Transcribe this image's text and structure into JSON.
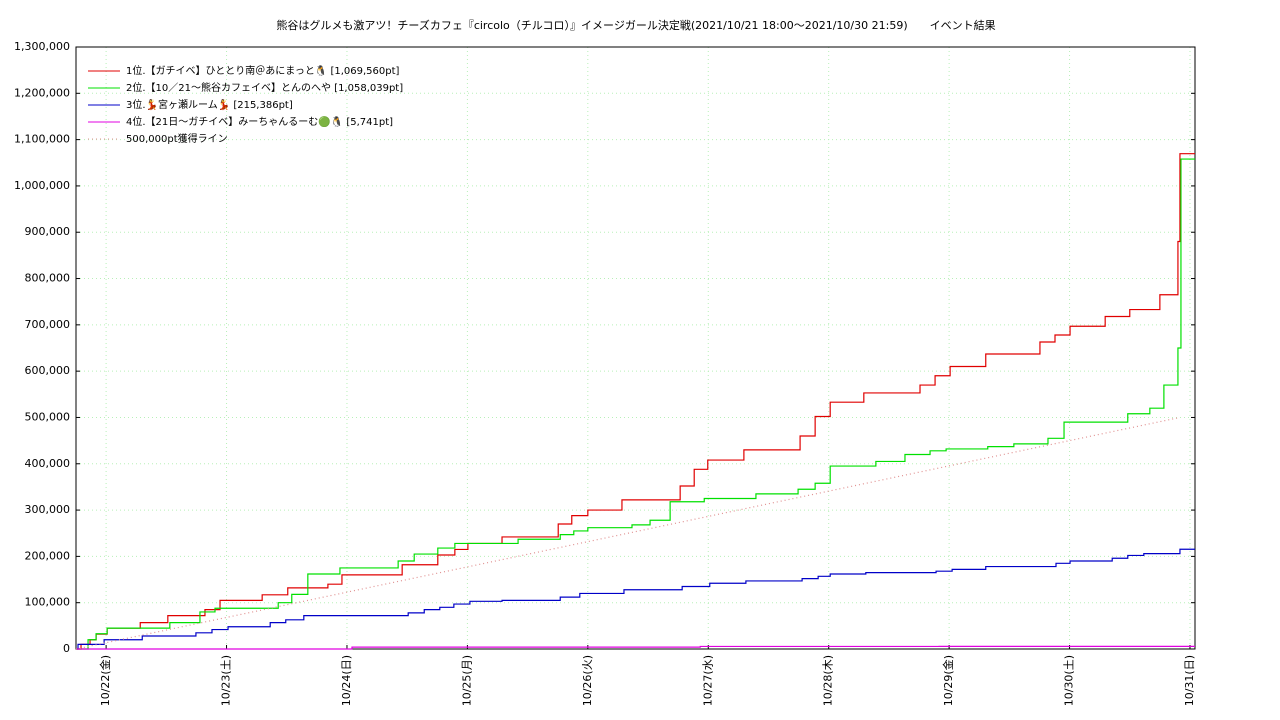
{
  "chart_data": {
    "type": "line",
    "step": true,
    "title": "熊谷はグルメも激アツ！チーズカフェ『circolo（チルコロ）』イメージガール決定戦(2021/10/21 18:00～2021/10/30 21:59)　　イベント結果",
    "xlim": [
      18,
      241
    ],
    "ylim": [
      0,
      1300000
    ],
    "grid": true,
    "legend": "upper-left",
    "xticks": [
      {
        "value": 24,
        "label": "10/22(金)"
      },
      {
        "value": 48,
        "label": "10/23(土)"
      },
      {
        "value": 72,
        "label": "10/24(日)"
      },
      {
        "value": 96,
        "label": "10/25(月)"
      },
      {
        "value": 120,
        "label": "10/26(火)"
      },
      {
        "value": 144,
        "label": "10/27(水)"
      },
      {
        "value": 168,
        "label": "10/28(木)"
      },
      {
        "value": 192,
        "label": "10/29(金)"
      },
      {
        "value": 216,
        "label": "10/30(土)"
      },
      {
        "value": 240,
        "label": "10/31(日)"
      }
    ],
    "yticks": [
      0,
      {
        "value": 100000,
        "label": "100,000"
      },
      {
        "value": 200000,
        "label": "200,000"
      },
      {
        "value": 300000,
        "label": "300,000"
      },
      {
        "value": 400000,
        "label": "400,000"
      },
      {
        "value": 500000,
        "label": "500,000"
      },
      {
        "value": 600000,
        "label": "600,000"
      },
      {
        "value": 700000,
        "label": "700,000"
      },
      {
        "value": 800000,
        "label": "800,000"
      },
      {
        "value": 900000,
        "label": "900,000"
      },
      {
        "value": 1000000,
        "label": "1,000,000"
      },
      {
        "value": 1100000,
        "label": "1,100,000"
      },
      {
        "value": 1200000,
        "label": "1,200,000"
      },
      {
        "value": 1300000,
        "label": "1,300,000"
      }
    ],
    "series": [
      {
        "name": "1位.【ガチイベ】ひととり南＠あにまっと🐧 [1,069,560pt]",
        "color": "#e00000",
        "x": [
          18,
          19,
          20.8,
          22,
          24.2,
          30.8,
          36.3,
          43.7,
          46.7,
          55.1,
          60.2,
          68.2,
          71,
          83,
          90.1,
          93.5,
          96.1,
          102.9,
          114.1,
          116.8,
          120,
          126.8,
          138.4,
          141.2,
          143.9,
          151.1,
          162.3,
          165.3,
          168.3,
          175,
          186.2,
          189.2,
          192.2,
          199.3,
          210.1,
          213.1,
          216.1,
          223.1,
          228,
          234,
          237.6,
          238
        ],
        "values": [
          0,
          10000,
          20000,
          32000,
          45000,
          57000,
          72000,
          85000,
          105000,
          117000,
          132000,
          140000,
          160000,
          182000,
          203000,
          215000,
          228000,
          242000,
          270000,
          288000,
          300000,
          322000,
          352000,
          388000,
          408000,
          430000,
          460000,
          502000,
          533000,
          553000,
          570000,
          590000,
          610000,
          637000,
          663000,
          678000,
          697000,
          718000,
          733000,
          765000,
          880000,
          1069560
        ]
      },
      {
        "name": "2位.【10／21〜熊谷カフェイベ】とんのへや [1,058,039pt]",
        "color": "#00e000",
        "x": [
          18,
          20.4,
          22,
          24.2,
          36.7,
          42.7,
          45.7,
          58.3,
          61,
          64.2,
          70.6,
          82.2,
          85.4,
          90.1,
          93.5,
          106.1,
          114.5,
          117.2,
          120,
          128.8,
          132.4,
          136.4,
          143.2,
          153.5,
          161.9,
          165.3,
          168.3,
          177.4,
          183.2,
          188.2,
          191.4,
          199.7,
          204.9,
          211.7,
          214.9,
          227.6,
          232,
          234.8,
          237.6,
          238.2
        ],
        "values": [
          0,
          20000,
          33000,
          45000,
          57000,
          80000,
          88000,
          100000,
          118000,
          162000,
          175000,
          190000,
          205000,
          218000,
          228000,
          237000,
          247000,
          255000,
          262000,
          268000,
          278000,
          318000,
          325000,
          335000,
          345000,
          358000,
          395000,
          405000,
          420000,
          428000,
          432000,
          437000,
          443000,
          455000,
          490000,
          508000,
          520000,
          570000,
          650000,
          1058039
        ]
      },
      {
        "name": "3位.💃宮ヶ瀬ルーム💃 [215,386pt]",
        "color": "#0000c8",
        "x": [
          18,
          18.4,
          23.6,
          31.2,
          41.9,
          45.1,
          48.3,
          56.7,
          59.8,
          63.4,
          84.2,
          87.4,
          90.5,
          93.3,
          96.5,
          102.9,
          114.5,
          118.4,
          127.2,
          138.8,
          144.3,
          151.5,
          162.7,
          165.9,
          168.3,
          175.4,
          189.4,
          192.6,
          199.3,
          213.3,
          216.1,
          224.5,
          227.6,
          230.8,
          238
        ],
        "values": [
          0,
          10000,
          20000,
          28000,
          35000,
          42000,
          48000,
          57000,
          63000,
          72000,
          78000,
          85000,
          90000,
          97000,
          103000,
          105000,
          112000,
          120000,
          128000,
          135000,
          142000,
          147000,
          152000,
          157000,
          162000,
          165000,
          168000,
          172000,
          178000,
          185000,
          190000,
          196000,
          202000,
          206000,
          215386
        ]
      },
      {
        "name": "4位.【21日〜ガチイベ】みーちゃんるーむ🟢🐧 [5,741pt]",
        "color": "#e000e0",
        "x": [
          18,
          73,
          142.4,
          190
        ],
        "values": [
          0,
          4000,
          5500,
          5741
        ]
      },
      {
        "name": "500,000pt獲得ライン",
        "color": "#e09090",
        "dash": "dotted",
        "step": false,
        "x": [
          18,
          238
        ],
        "values": [
          0,
          500000
        ]
      }
    ]
  }
}
